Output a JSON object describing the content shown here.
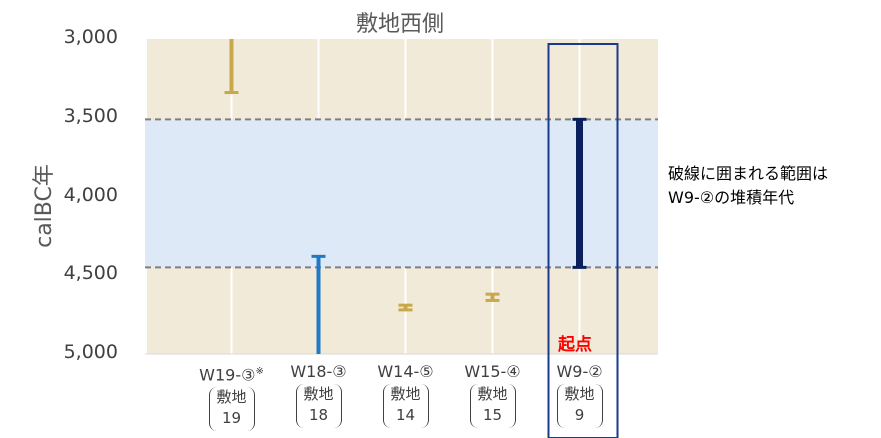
{
  "chart_data": {
    "type": "range",
    "title": "敷地西側",
    "ylabel": "calBC年",
    "ylim": [
      3000,
      5000
    ],
    "y_reversed": true,
    "yticks": [
      "3,000",
      "3,500",
      "4,000",
      "4,500",
      "5,000"
    ],
    "grid": "vertical",
    "categories": [
      {
        "code": "W19-③",
        "mark": "※",
        "site": "敷地",
        "num": "19"
      },
      {
        "code": "W18-③",
        "mark": "",
        "site": "敷地",
        "num": "18"
      },
      {
        "code": "W14-⑤",
        "mark": "",
        "site": "敷地",
        "num": "14"
      },
      {
        "code": "W15-④",
        "mark": "",
        "site": "敷地",
        "num": "15"
      },
      {
        "code": "W9-②",
        "mark": "",
        "site": "敷地",
        "num": "9"
      }
    ],
    "ranges": [
      {
        "category": "W19-③",
        "from": 3000,
        "to": 3340,
        "color": "#c9a84b"
      },
      {
        "category": "W18-③",
        "from": 4380,
        "to": 5000,
        "color": "#1f78c8"
      },
      {
        "category": "W14-⑤",
        "from": 4690,
        "to": 4720,
        "color": "#c9a84b"
      },
      {
        "category": "W15-④",
        "from": 4620,
        "to": 4660,
        "color": "#c9a84b"
      },
      {
        "category": "W9-②",
        "from": 3510,
        "to": 4450,
        "color": "#0b1f5c"
      }
    ],
    "highlight_band": {
      "from": 3510,
      "to": 4450
    },
    "annotation": "破線に囲まれる範囲は\nW9-②の堆積年代",
    "start_label": "起点",
    "colors": {
      "beige": "#f2ead9",
      "band": "#dde9f7",
      "dashed": "#7f7f7f",
      "box": "#1a3a8c",
      "grid": "#ffffff"
    }
  }
}
